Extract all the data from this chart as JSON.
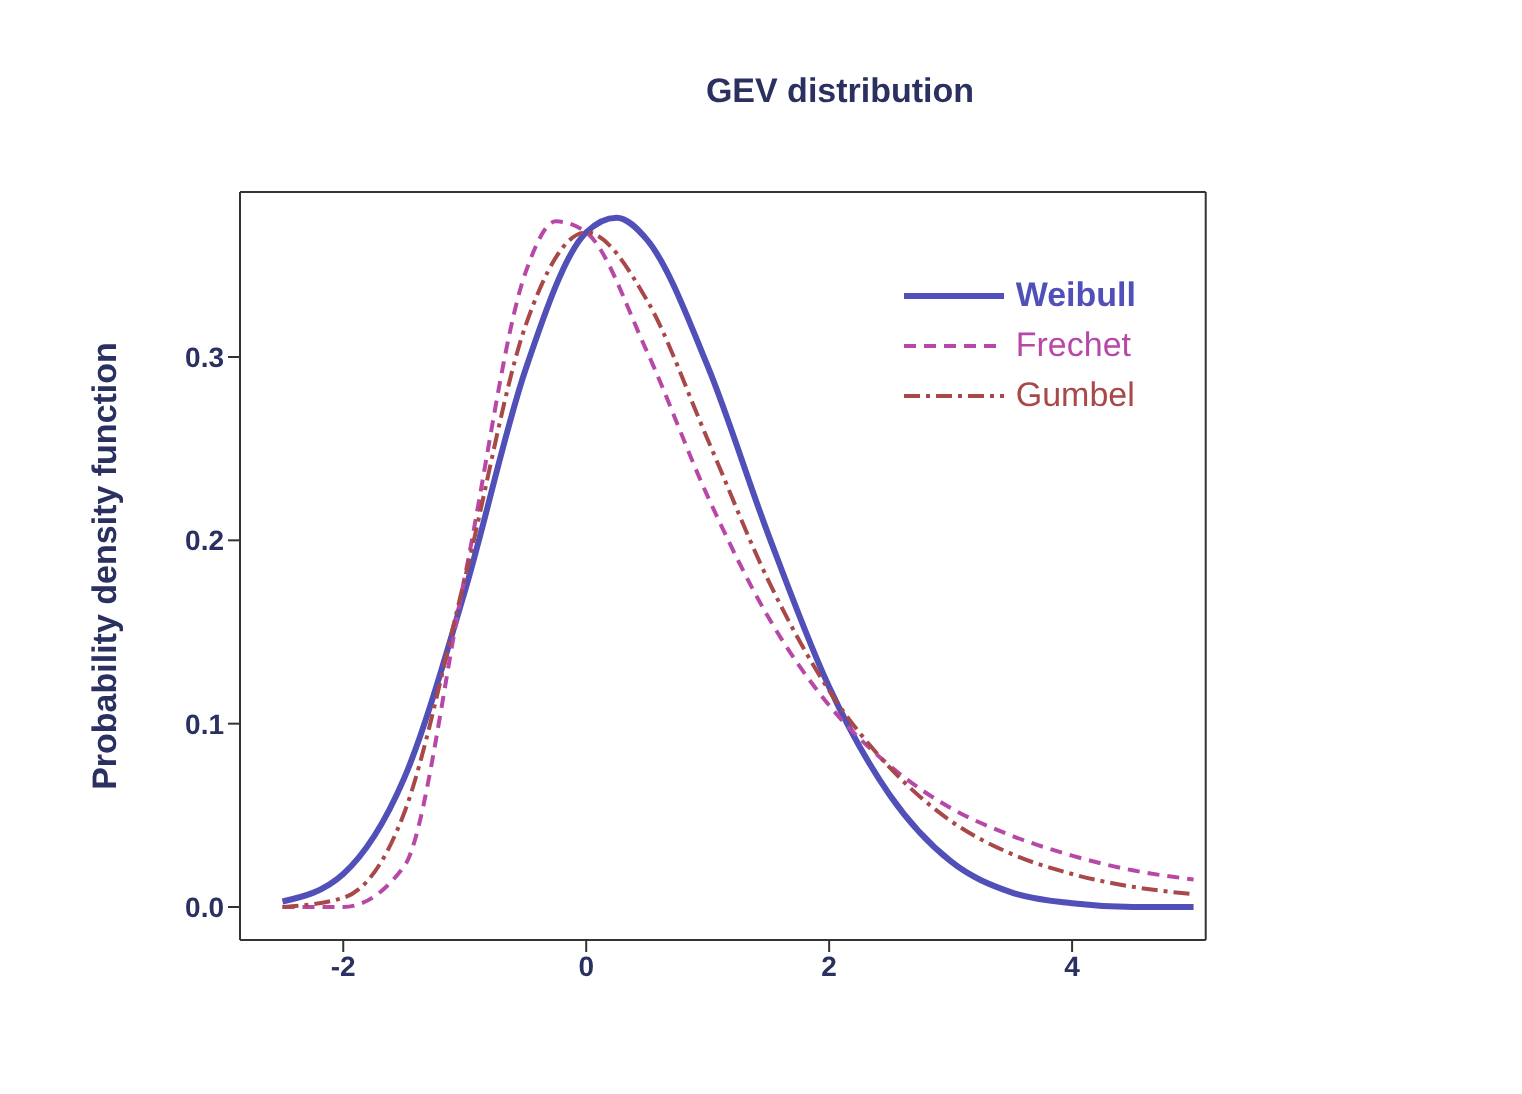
{
  "chart_data": {
    "type": "line",
    "title": "GEV distribution",
    "ylabel": "Probability density function",
    "xlim": [
      -2.85,
      5.1
    ],
    "ylim": [
      -0.018,
      0.39
    ],
    "xticks": [
      -2,
      0,
      2,
      4
    ],
    "yticks": [
      {
        "value": 0,
        "label": "0.0"
      },
      {
        "value": 0.1,
        "label": "0.1"
      },
      {
        "value": 0.2,
        "label": "0.2"
      },
      {
        "value": 0.3,
        "label": "0.3"
      }
    ],
    "legend": "top right",
    "marker": "none",
    "series": [
      {
        "name": "Weibull",
        "color": "#5050b8",
        "line_style": "solid",
        "x": [
          -2.5,
          -2,
          -1.5,
          -1,
          -0.5,
          0,
          0.25,
          0.5,
          1,
          1.5,
          2,
          2.5,
          3,
          3.5,
          4,
          4.5,
          5
        ],
        "values": [
          0.003,
          0.018,
          0.07,
          0.172,
          0.293,
          0.368,
          0.376,
          0.364,
          0.295,
          0.203,
          0.12,
          0.061,
          0.025,
          0.008,
          0.002,
          0,
          0
        ]
      },
      {
        "name": "Frechet",
        "color": "#b848a8",
        "line_style": "dashed",
        "x": [
          -2.5,
          -2,
          -1.5,
          -1,
          -0.5,
          -0.25,
          0,
          0.5,
          1,
          1.5,
          2,
          2.5,
          3,
          3.5,
          4,
          4.5,
          5
        ],
        "values": [
          0,
          0,
          0.022,
          0.18,
          0.346,
          0.374,
          0.368,
          0.303,
          0.224,
          0.158,
          0.11,
          0.077,
          0.054,
          0.039,
          0.028,
          0.02,
          0.015
        ]
      },
      {
        "name": "Gumbel",
        "color": "#a84848",
        "line_style": "dashdot",
        "x": [
          -2.5,
          -2,
          -1.5,
          -1,
          -0.5,
          0,
          0.5,
          1,
          1.5,
          2,
          2.5,
          3,
          3.5,
          4,
          4.5,
          5
        ],
        "values": [
          0,
          0.005,
          0.051,
          0.179,
          0.317,
          0.368,
          0.331,
          0.255,
          0.178,
          0.118,
          0.076,
          0.047,
          0.029,
          0.018,
          0.011,
          0.007
        ]
      }
    ]
  }
}
